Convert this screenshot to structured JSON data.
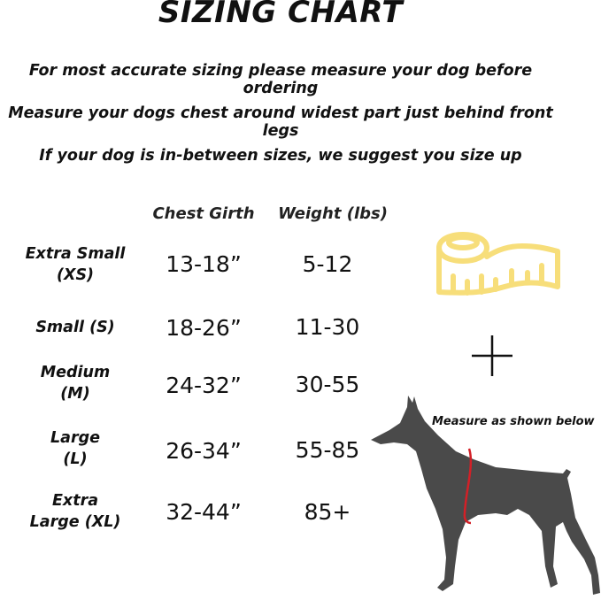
{
  "title": "SIZING CHART",
  "instructions": [
    "For most accurate sizing please measure your dog before ordering",
    "Measure your dogs chest around widest part just behind front legs",
    "If your dog is in-between sizes, we suggest you size up"
  ],
  "table": {
    "headers": [
      "Chest Girth",
      "Weight (lbs)"
    ],
    "rows": [
      {
        "size_line1": "Extra Small",
        "size_line2": "(XS)",
        "chest": "13-18”",
        "weight": "5-12"
      },
      {
        "size_line1": "Small (S)",
        "size_line2": "",
        "chest": "18-26”",
        "weight": "11-30"
      },
      {
        "size_line1": "Medium",
        "size_line2": "(M)",
        "chest": "24-32”",
        "weight": "30-55"
      },
      {
        "size_line1": "Large",
        "size_line2": "(L)",
        "chest": "26-34”",
        "weight": "55-85"
      },
      {
        "size_line1": "Extra",
        "size_line2": "Large (XL)",
        "chest": "32-44”",
        "weight": "85+"
      }
    ]
  },
  "illustration": {
    "note": "Measure as shown below",
    "icons": [
      "tape-measure-icon",
      "plus-icon",
      "dog-silhouette"
    ],
    "colors": {
      "tape": "#f7de7a",
      "dog": "#4a4a4a",
      "measure_line": "#d32027"
    }
  }
}
